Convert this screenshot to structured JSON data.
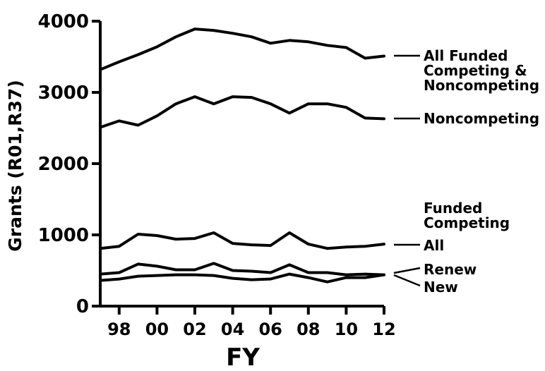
{
  "chart_data": {
    "type": "line",
    "title": "",
    "xlabel": "FY",
    "ylabel": "Grants (R01,R37)",
    "xlim": [
      1997,
      2012
    ],
    "ylim": [
      0,
      4000
    ],
    "x_ticks": [
      1998,
      2000,
      2002,
      2004,
      2006,
      2008,
      2010,
      2012
    ],
    "x_tick_labels": [
      "98",
      "00",
      "02",
      "04",
      "06",
      "08",
      "10",
      "12"
    ],
    "y_ticks": [
      0,
      1000,
      2000,
      3000,
      4000
    ],
    "y_tick_labels": [
      "0",
      "1000",
      "2000",
      "3000",
      "4000"
    ],
    "grid": false,
    "x": [
      1997,
      1998,
      1999,
      2000,
      2001,
      2002,
      2003,
      2004,
      2005,
      2006,
      2007,
      2008,
      2009,
      2010,
      2011,
      2012
    ],
    "series": [
      {
        "name": "All Funded Competing & Noncompeting",
        "label_lines": [
          "All Funded",
          "Competing &",
          "Noncompeting"
        ],
        "values": [
          3320,
          3430,
          3530,
          3640,
          3780,
          3890,
          3870,
          3830,
          3780,
          3690,
          3730,
          3710,
          3660,
          3630,
          3480,
          3510
        ]
      },
      {
        "name": "Noncompeting",
        "label_lines": [
          "Noncompeting"
        ],
        "values": [
          2510,
          2600,
          2540,
          2670,
          2840,
          2940,
          2840,
          2940,
          2930,
          2840,
          2710,
          2840,
          2840,
          2790,
          2640,
          2630
        ]
      },
      {
        "name": "All",
        "label_lines": [
          "All"
        ],
        "values": [
          810,
          840,
          1010,
          990,
          940,
          950,
          1030,
          880,
          860,
          850,
          1030,
          870,
          810,
          830,
          840,
          870
        ]
      },
      {
        "name": "Renew",
        "label_lines": [
          "Renew"
        ],
        "values": [
          450,
          470,
          590,
          560,
          510,
          510,
          600,
          500,
          490,
          470,
          580,
          470,
          470,
          440,
          450,
          440
        ]
      },
      {
        "name": "New",
        "label_lines": [
          "New"
        ],
        "values": [
          360,
          380,
          420,
          430,
          440,
          440,
          430,
          390,
          370,
          380,
          450,
          400,
          340,
          400,
          400,
          440
        ]
      }
    ],
    "group_label": [
      "Funded",
      "Competing"
    ]
  }
}
